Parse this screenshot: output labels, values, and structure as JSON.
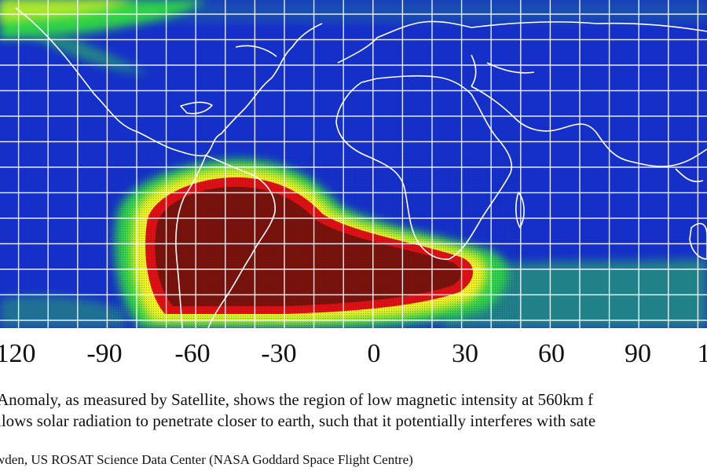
{
  "figure": {
    "x_ticks": [
      "120",
      "-90",
      "-60",
      "-30",
      "0",
      "30",
      "60",
      "90",
      "1"
    ],
    "caption_line1": "Anomaly, as measured by Satellite, shows the region of low magnetic intensity at 560km f",
    "caption_line2": "llows solar radiation to penetrate closer to earth, such that it potentially interferes with sate",
    "credit": "wden, US ROSAT Science Data Center (NASA Goddard Space Flight Centre)"
  },
  "colors": {
    "ocean_background": "#1530c8",
    "grid_lines": "#ffffff",
    "coastlines": "#ffffff",
    "level_green": "#2fd24a",
    "level_yellow": "#f2f21a",
    "level_red": "#e11010",
    "level_core": "#7a1208"
  }
}
